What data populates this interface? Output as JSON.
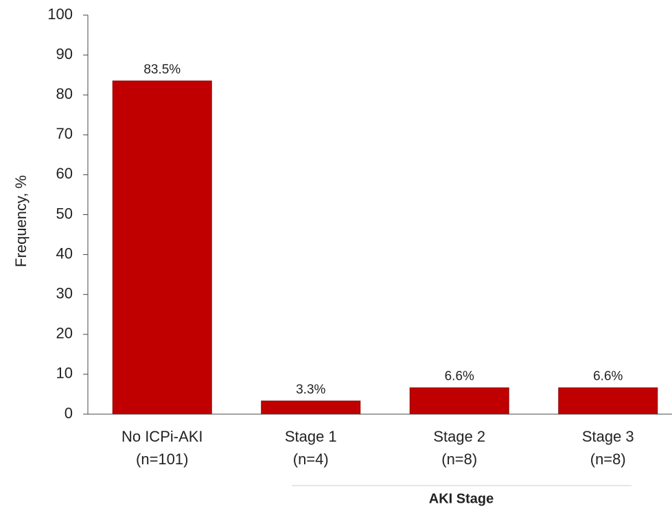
{
  "chart_data": {
    "type": "bar",
    "y_label": "Frequency, %",
    "categories": [
      [
        "No ICPi-AKI",
        "(n=101)"
      ],
      [
        "Stage 1",
        "(n=4)"
      ],
      [
        "Stage 2",
        "(n=8)"
      ],
      [
        "Stage 3",
        "(n=8)"
      ]
    ],
    "values": [
      83.5,
      3.3,
      6.6,
      6.6
    ],
    "value_labels": [
      "83.5%",
      "3.3%",
      "6.6%",
      "6.6%"
    ],
    "color": "#c00000",
    "ylim": [
      0,
      100
    ],
    "yticks": [
      0,
      10,
      20,
      30,
      40,
      50,
      60,
      70,
      80,
      90,
      100
    ],
    "grid": false,
    "group_label": "AKI Stage"
  }
}
